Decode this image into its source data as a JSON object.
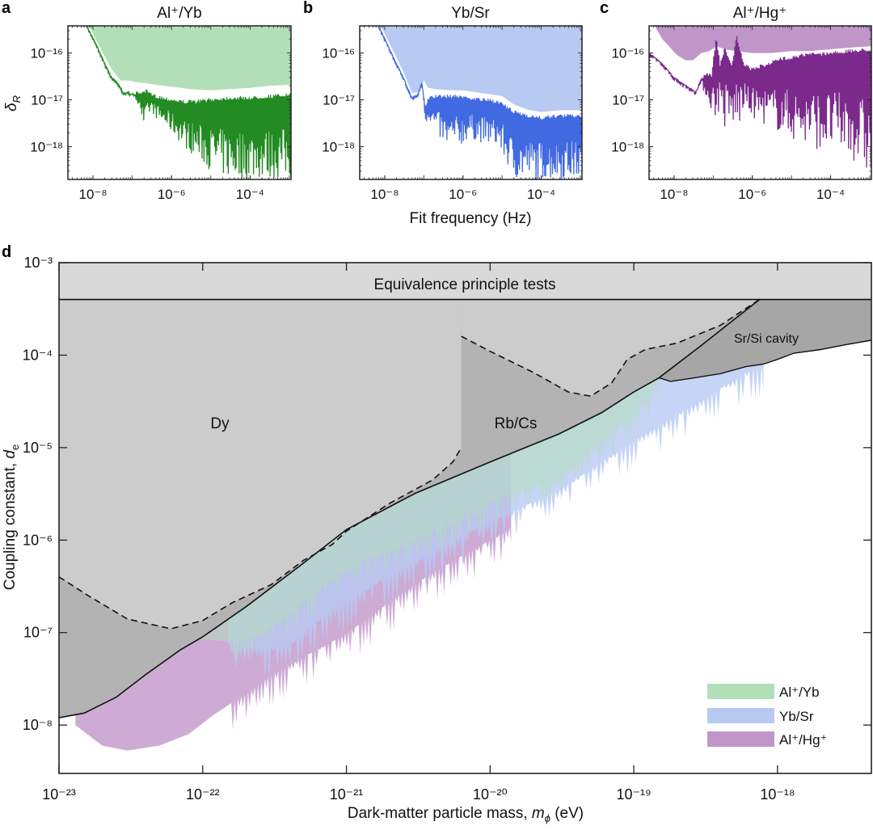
{
  "chart_data": [
    {
      "panel": "a",
      "type": "line",
      "title": "Al⁺/Yb",
      "xlabel": "",
      "ylabel": "δ_R",
      "xscale": "log",
      "yscale": "log",
      "xlim": [
        2.3e-09,
        0.0011
      ],
      "ylim": [
        2e-19,
        3.8e-16
      ],
      "xticks": [
        {
          "value": 1e-08,
          "label": "10⁻⁸"
        },
        {
          "value": 1e-06,
          "label": "10⁻⁶"
        },
        {
          "value": 0.0001,
          "label": "10⁻⁴"
        }
      ],
      "yticks": [
        {
          "value": 1e-16,
          "label": "10⁻¹⁶"
        },
        {
          "value": 1e-17,
          "label": "10⁻¹⁷"
        },
        {
          "value": 1e-18,
          "label": "10⁻¹⁸"
        }
      ],
      "line_color": "#228b22",
      "fill_color": "#b3dfb8",
      "bound": {
        "x": [
          8e-09,
          1.5e-08,
          3e-08,
          5e-08,
          8e-08,
          1.2e-07,
          2e-07,
          4e-07,
          1e-06,
          3e-06,
          1e-05,
          3e-05,
          0.0001,
          0.0003,
          0.0011
        ],
        "y": [
          3.8e-16,
          1.3e-16,
          4.5e-17,
          2.6e-17,
          2.6e-17,
          2.4e-17,
          2.3e-17,
          2.1e-17,
          1.9e-17,
          1.7e-17,
          1.6e-17,
          1.7e-17,
          1.8e-17,
          2e-17,
          2.1e-17
        ]
      },
      "signal": {
        "x": [
          7e-09,
          1.2e-08,
          2e-08,
          3e-08,
          4.5e-08,
          6e-08,
          8e-08,
          1e-07,
          1.3e-07,
          1.6e-07,
          2e-07,
          2.3e-07,
          3e-07,
          4e-07,
          6e-07,
          1e-06,
          2e-06,
          4e-06,
          1e-05,
          3e-05,
          0.0001,
          0.0003,
          0.0011
        ],
        "y_top": [
          3.8e-16,
          1.6e-16,
          6e-17,
          3e-17,
          2.2e-17,
          1.4e-17,
          1.5e-17,
          1.4e-17,
          1.5e-17,
          1.6e-17,
          1.5e-17,
          1.7e-17,
          1.4e-17,
          1.3e-17,
          1.2e-17,
          1.1e-17,
          1e-17,
          1e-17,
          1.1e-17,
          1.2e-17,
          1.2e-17,
          1.3e-17,
          1.4e-17
        ],
        "y_bottom": [
          3.8e-16,
          1.6e-16,
          6e-17,
          3e-17,
          2.2e-17,
          1.4e-17,
          1.3e-17,
          1.3e-17,
          9e-18,
          7e-18,
          1.8e-18,
          3e-18,
          6e-18,
          4e-18,
          3e-18,
          2e-18,
          1e-18,
          6e-19,
          3e-19,
          2e-19,
          2e-19,
          2e-19,
          2e-19
        ]
      }
    },
    {
      "panel": "b",
      "type": "line",
      "title": "Yb/Sr",
      "xlabel": "Fit frequency (Hz)",
      "ylabel": "",
      "xscale": "log",
      "yscale": "log",
      "xlim": [
        2.3e-09,
        0.0011
      ],
      "ylim": [
        2e-19,
        3.8e-16
      ],
      "xticks": [
        {
          "value": 1e-08,
          "label": "10⁻⁸"
        },
        {
          "value": 1e-06,
          "label": "10⁻⁶"
        },
        {
          "value": 0.0001,
          "label": "10⁻⁴"
        }
      ],
      "yticks": [
        {
          "value": 1e-16,
          "label": "10⁻¹⁶"
        },
        {
          "value": 1e-17,
          "label": "10⁻¹⁷"
        },
        {
          "value": 1e-18,
          "label": "10⁻¹⁸"
        }
      ],
      "line_color": "#4169e1",
      "fill_color": "#b8c9f2",
      "bound": {
        "x": [
          8e-09,
          1.5e-08,
          3e-08,
          5e-08,
          8e-08,
          1e-07,
          1.3e-07,
          2e-07,
          5e-07,
          1e-06,
          3e-06,
          1e-05,
          2e-05,
          5e-05,
          0.0001,
          0.0003,
          0.0011
        ],
        "y": [
          3.8e-16,
          1.3e-16,
          4e-17,
          1.4e-17,
          1.5e-17,
          2.6e-17,
          1.8e-17,
          1.7e-17,
          1.6e-17,
          1.6e-17,
          1.4e-17,
          1.2e-17,
          8e-18,
          6e-18,
          5.5e-18,
          6e-18,
          6e-18
        ]
      },
      "signal": {
        "x": [
          7e-09,
          1.5e-08,
          3e-08,
          5e-08,
          7e-08,
          9e-08,
          1.1e-07,
          1.3e-07,
          2e-07,
          4e-07,
          8e-07,
          1.5e-06,
          3e-06,
          8e-06,
          2e-05,
          5e-05,
          0.0001,
          0.0003,
          0.0011
        ],
        "y_top": [
          3.8e-16,
          1e-16,
          3e-17,
          1.1e-17,
          1.3e-17,
          2.4e-17,
          7e-18,
          1.2e-17,
          1.3e-17,
          1.3e-17,
          1.3e-17,
          1.2e-17,
          1.1e-17,
          1e-17,
          6e-18,
          5e-18,
          4.5e-18,
          5e-18,
          5e-18
        ],
        "y_bottom": [
          3.8e-16,
          1e-16,
          3e-17,
          1.1e-17,
          1.3e-17,
          2.4e-17,
          3e-18,
          4e-18,
          2e-18,
          8e-19,
          1e-18,
          1.5e-18,
          1.2e-18,
          1e-18,
          2e-19,
          2e-19,
          2e-19,
          2e-19,
          2e-19
        ]
      }
    },
    {
      "panel": "c",
      "type": "line",
      "title": "Al⁺/Hg⁺",
      "xlabel": "",
      "ylabel": "",
      "xscale": "log",
      "yscale": "log",
      "xlim": [
        2.3e-09,
        0.0011
      ],
      "ylim": [
        2e-19,
        3.8e-16
      ],
      "xticks": [
        {
          "value": 1e-08,
          "label": "10⁻⁸"
        },
        {
          "value": 1e-06,
          "label": "10⁻⁶"
        },
        {
          "value": 0.0001,
          "label": "10⁻⁴"
        }
      ],
      "yticks": [
        {
          "value": 1e-16,
          "label": "10⁻¹⁶"
        },
        {
          "value": 1e-17,
          "label": "10⁻¹⁷"
        },
        {
          "value": 1e-18,
          "label": "10⁻¹⁸"
        }
      ],
      "line_color": "#7b2a8c",
      "fill_color": "#c096c9",
      "bound": {
        "x": [
          3.2e-09,
          5e-09,
          8e-09,
          1.2e-08,
          2e-08,
          3e-08,
          5e-08,
          8e-08,
          1.2e-07,
          2e-07,
          4e-07,
          1e-06,
          3e-06,
          1e-05,
          3e-05,
          0.0001,
          0.0003,
          0.0011
        ],
        "y": [
          3.8e-16,
          2e-16,
          1.3e-16,
          9e-17,
          7e-17,
          7e-17,
          1e-16,
          1.1e-16,
          1.4e-16,
          1.2e-16,
          1.1e-16,
          1e-16,
          1e-16,
          1.1e-16,
          1.1e-16,
          1.2e-16,
          1.3e-16,
          1.4e-16
        ]
      },
      "signal": {
        "x": [
          2.3e-09,
          5e-09,
          1e-08,
          2e-08,
          3.5e-08,
          5e-08,
          7e-08,
          9e-08,
          1.2e-07,
          1.5e-07,
          2e-07,
          3e-07,
          4e-07,
          6e-07,
          1e-06,
          2e-06,
          5e-06,
          2e-05,
          0.0001,
          0.0003,
          0.0011
        ],
        "y_top": [
          1e-16,
          6e-17,
          3e-17,
          2e-17,
          1.5e-17,
          3.2e-17,
          4e-17,
          3.5e-17,
          2.5e-16,
          6e-17,
          1.4e-16,
          6e-17,
          2.5e-16,
          6e-17,
          5e-17,
          6e-17,
          8e-17,
          1e-16,
          1.1e-16,
          1.2e-16,
          1.3e-16
        ],
        "y_bottom": [
          1e-16,
          6e-17,
          3e-17,
          2e-17,
          1.5e-17,
          2e-17,
          1e-17,
          6e-18,
          3e-18,
          8e-18,
          2e-18,
          3e-18,
          1.7e-18,
          6e-18,
          4e-18,
          3e-18,
          2e-18,
          1e-18,
          8e-19,
          6e-19,
          2e-19
        ]
      }
    },
    {
      "panel": "d",
      "type": "area",
      "title": "",
      "xlabel": "Dark-matter particle mass, m_ϕ (eV)",
      "ylabel": "Coupling constant, d_e",
      "xscale": "log",
      "yscale": "log",
      "xlim": [
        1e-23,
        4.5e-18
      ],
      "ylim": [
        3e-09,
        0.001
      ],
      "xticks": [
        {
          "value": 1e-23,
          "label": "10⁻²³"
        },
        {
          "value": 1e-22,
          "label": "10⁻²²"
        },
        {
          "value": 1e-21,
          "label": "10⁻²¹"
        },
        {
          "value": 1e-20,
          "label": "10⁻²⁰"
        },
        {
          "value": 1e-19,
          "label": "10⁻¹⁹"
        },
        {
          "value": 1e-18,
          "label": "10⁻¹⁸"
        }
      ],
      "yticks": [
        {
          "value": 0.001,
          "label": "10⁻³"
        },
        {
          "value": 0.0001,
          "label": "10⁻⁴"
        },
        {
          "value": 1e-05,
          "label": "10⁻⁵"
        },
        {
          "value": 1e-06,
          "label": "10⁻⁶"
        },
        {
          "value": 1e-07,
          "label": "10⁻⁷"
        },
        {
          "value": 1e-08,
          "label": "10⁻⁸"
        }
      ],
      "regions": [
        {
          "name": "Equivalence principle tests",
          "color": "#d9d9d9",
          "lower_bound": 0.0004
        },
        {
          "name": "Dy",
          "color": "#cccccc",
          "x": [
            1e-23,
            1.6e-23,
            3e-23,
            6e-23,
            1e-22,
            1.6e-22,
            3e-22,
            5e-22,
            8e-22,
            1e-21,
            2e-21,
            4e-21,
            5.5e-21,
            6.3e-21,
            6.3e-21
          ],
          "y": [
            4e-07,
            2.5e-07,
            1.4e-07,
            1.1e-07,
            1.35e-07,
            2.1e-07,
            3.3e-07,
            6e-07,
            9e-07,
            1.25e-06,
            2.5e-06,
            4.5e-06,
            7e-06,
            1e-05,
            0.00016
          ]
        },
        {
          "name": "Rb/Cs",
          "color": "#b3b3b3",
          "x": [
            6.3e-21,
            1e-20,
            2e-20,
            3.5e-20,
            5e-20,
            7e-20,
            9e-20,
            1.2e-19,
            2e-19,
            4e-19,
            7.5e-19
          ],
          "y": [
            0.00016,
            0.00011,
            6.5e-05,
            4e-05,
            3.6e-05,
            5e-05,
            9e-05,
            0.000115,
            0.000135,
            0.00021,
            0.0004
          ]
        },
        {
          "name": "Sr/Si cavity",
          "color": "#a6a6a6",
          "x": [
            1.5e-19,
            1.8e-19,
            2.5e-19,
            4e-19,
            6e-19,
            8e-19,
            1e-18,
            1.3e-18,
            2e-18,
            3e-18,
            4.5e-18
          ],
          "y": [
            5.7e-05,
            5.2e-05,
            5.6e-05,
            6.3e-05,
            7.5e-05,
            8e-05,
            9e-05,
            0.000105,
            0.000115,
            0.00013,
            0.000145
          ]
        }
      ],
      "combined_bound_solid": {
        "x": [
          1e-23,
          1.5e-23,
          2.5e-23,
          4e-23,
          7e-23,
          1e-22,
          2e-22,
          5e-22,
          1e-21,
          3e-21,
          1e-20,
          3e-20,
          6e-20,
          1e-19,
          1.5e-19,
          3e-19,
          7.5e-19
        ],
        "y": [
          1.2e-08,
          1.35e-08,
          2e-08,
          3.5e-08,
          6.5e-08,
          9e-08,
          1.9e-07,
          5.6e-07,
          1.3e-06,
          3.2e-06,
          7e-06,
          1.4e-05,
          2.4e-05,
          4e-05,
          5.7e-05,
          0.00013,
          0.0004
        ]
      },
      "series": [
        {
          "name": "Al⁺/Yb",
          "color": "#b3dfb8",
          "x": [
            1e-22,
            1.5e-22,
            2.5e-22,
            4e-22,
            6e-22,
            1e-21,
            2e-21,
            4e-21,
            1e-20,
            3e-20,
            1e-19,
            1.5e-19
          ],
          "y_lower": [
            8.5e-08,
            8e-08,
            1e-07,
            1.6e-07,
            3e-07,
            5e-07,
            8e-07,
            1.3e-06,
            2.7e-06,
            5e-06,
            2.5e-05,
            5.5e-05
          ]
        },
        {
          "name": "Yb/Sr",
          "color": "#b8c9f2",
          "x": [
            1.5e-22,
            2.5e-22,
            4e-22,
            6e-22,
            1e-21,
            2e-21,
            4e-21,
            1e-20,
            3e-20,
            1e-19,
            3e-19,
            6e-19,
            8e-19
          ],
          "y_lower": [
            7.5e-08,
            6.5e-08,
            7.5e-08,
            1.3e-07,
            2.2e-07,
            4.2e-07,
            7.5e-07,
            1.6e-06,
            3.5e-06,
            1.2e-05,
            3.3e-05,
            6.5e-05,
            8e-05
          ]
        },
        {
          "name": "Al⁺/Hg⁺",
          "color": "#c096c9",
          "x": [
            1.3e-23,
            2e-23,
            3e-23,
            5e-23,
            8e-23,
            1.2e-22,
            2e-22,
            3e-22,
            5e-22,
            8e-22,
            1.2e-21,
            2e-21,
            4e-21,
            1e-20,
            2e-20,
            1.4e-20
          ],
          "y_lower": [
            1e-08,
            6e-09,
            5.3e-09,
            6e-09,
            8e-09,
            1.3e-08,
            2.2e-08,
            3.5e-08,
            5.5e-08,
            8e-08,
            1.2e-07,
            2.2e-07,
            4.5e-07,
            1e-06,
            2e-06,
            1.8e-06
          ]
        }
      ],
      "legend": {
        "placement": "bottom-right",
        "entries": [
          {
            "label": "Al⁺/Yb",
            "color": "#b3dfb8"
          },
          {
            "label": "Yb/Sr",
            "color": "#b8c9f2"
          },
          {
            "label": "Al⁺/Hg⁺",
            "color": "#c096c9"
          }
        ]
      },
      "annotations": [
        "Equivalence principle tests",
        "Dy",
        "Rb/Cs",
        "Sr/Si cavity"
      ]
    }
  ],
  "labels": {
    "panel_a": "a",
    "panel_b": "b",
    "panel_c": "c",
    "panel_d": "d",
    "title_a": "Al⁺/Yb",
    "title_b": "Yb/Sr",
    "title_c": "Al⁺/Hg⁺",
    "ylabel_top": "δ",
    "ylabel_top_sub": "R",
    "xlabel_top": "Fit frequency (Hz)",
    "xlabel_main_pre": "Dark-matter particle mass, ",
    "xlabel_main_var": "m",
    "xlabel_main_sub": "ϕ",
    "xlabel_main_post": " (eV)",
    "ylabel_main_pre": "Coupling constant, ",
    "ylabel_main_var": "d",
    "ylabel_main_sub": "e",
    "region_ep": "Equivalence principle tests",
    "region_dy": "Dy",
    "region_rbcs": "Rb/Cs",
    "region_srsi": "Sr/Si cavity",
    "legend_1": "Al⁺/Yb",
    "legend_2": "Yb/Sr",
    "legend_3": "Al⁺/Hg⁺"
  }
}
